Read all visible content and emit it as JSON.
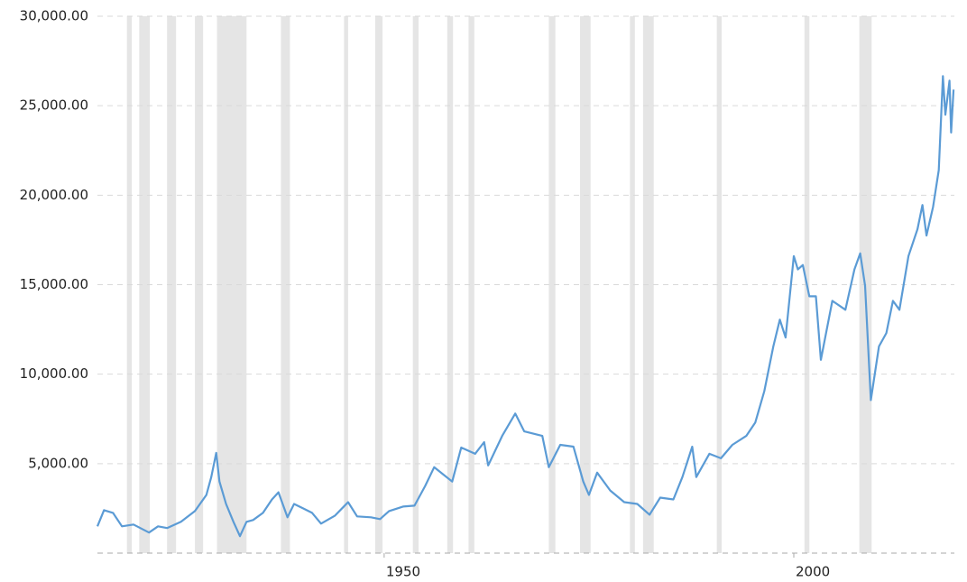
{
  "chart_data": {
    "type": "line",
    "xlim": [
      1915,
      2019.6
    ],
    "xticks": [
      1950,
      2000
    ],
    "ylim": [
      0,
      30000
    ],
    "yticks": [
      {
        "value": 5000,
        "label": "5,000.00"
      },
      {
        "value": 10000,
        "label": "10,000.00"
      },
      {
        "value": 15000,
        "label": "15,000.00"
      },
      {
        "value": 20000,
        "label": "20,000.00"
      },
      {
        "value": 25000,
        "label": "25,000.00"
      },
      {
        "value": 30000,
        "label": "30,000.00"
      }
    ],
    "grid": true,
    "band_color": "#e5e5e5",
    "recessions": [
      [
        1918.6,
        1919.2
      ],
      [
        1920.1,
        1921.4
      ],
      [
        1923.5,
        1924.6
      ],
      [
        1926.9,
        1927.9
      ],
      [
        1929.6,
        1933.2
      ],
      [
        1937.4,
        1938.5
      ],
      [
        1945.1,
        1945.6
      ],
      [
        1948.9,
        1949.8
      ],
      [
        1953.5,
        1954.2
      ],
      [
        1957.7,
        1958.4
      ],
      [
        1960.3,
        1961.0
      ],
      [
        1970.1,
        1970.9
      ],
      [
        1973.9,
        1975.2
      ],
      [
        1980.0,
        1980.6
      ],
      [
        1981.6,
        1982.9
      ],
      [
        1990.6,
        1991.2
      ],
      [
        2001.3,
        2001.9
      ],
      [
        2008.0,
        2009.5
      ]
    ],
    "series": [
      {
        "color": "#5b9bd5",
        "x": [
          1915.0,
          1915.8,
          1916.9,
          1918.0,
          1919.4,
          1921.3,
          1922.4,
          1923.5,
          1925.2,
          1926.9,
          1928.3,
          1928.9,
          1929.5,
          1929.9,
          1930.7,
          1931.6,
          1932.4,
          1933.2,
          1934.0,
          1935.2,
          1936.3,
          1937.1,
          1938.2,
          1939.0,
          1940.1,
          1941.2,
          1942.3,
          1944.0,
          1945.6,
          1946.7,
          1948.4,
          1949.5,
          1950.6,
          1952.3,
          1953.7,
          1955.0,
          1956.1,
          1957.2,
          1958.3,
          1959.4,
          1961.1,
          1962.2,
          1962.7,
          1964.4,
          1966.0,
          1967.1,
          1969.3,
          1970.1,
          1971.5,
          1973.1,
          1974.3,
          1975.0,
          1976.0,
          1977.6,
          1979.3,
          1980.9,
          1982.4,
          1983.7,
          1985.3,
          1986.4,
          1987.6,
          1988.1,
          1989.7,
          1991.1,
          1992.5,
          1994.2,
          1995.3,
          1996.4,
          1997.5,
          1998.3,
          1999.0,
          2000.0,
          2000.5,
          2001.1,
          2001.9,
          2002.7,
          2003.3,
          2004.7,
          2006.3,
          2007.4,
          2008.1,
          2008.7,
          2009.4,
          2010.4,
          2011.3,
          2012.1,
          2012.9,
          2014.0,
          2015.1,
          2015.7,
          2016.2,
          2017.0,
          2017.7,
          2018.2,
          2018.5,
          2019.0,
          2019.2,
          2019.5
        ],
        "values": [
          1500,
          2400,
          2250,
          1500,
          1600,
          1150,
          1500,
          1400,
          1750,
          2350,
          3250,
          4250,
          5600,
          4000,
          2750,
          1750,
          950,
          1750,
          1850,
          2250,
          3000,
          3400,
          2000,
          2750,
          2500,
          2250,
          1650,
          2100,
          2850,
          2050,
          2000,
          1900,
          2350,
          2600,
          2650,
          3750,
          4800,
          4400,
          4000,
          5900,
          5550,
          6200,
          4900,
          6550,
          7800,
          6800,
          6550,
          4800,
          6050,
          5950,
          4000,
          3250,
          4500,
          3500,
          2850,
          2750,
          2150,
          3100,
          3000,
          4250,
          5950,
          4250,
          5550,
          5300,
          6050,
          6550,
          7300,
          9050,
          11550,
          13050,
          12050,
          16600,
          15850,
          16100,
          14350,
          14350,
          10800,
          14100,
          13600,
          15850,
          16750,
          14950,
          8550,
          11550,
          12300,
          14100,
          13600,
          16600,
          18100,
          19450,
          17750,
          19350,
          21400,
          26650,
          24500,
          26400,
          23500,
          25900
        ]
      }
    ]
  }
}
